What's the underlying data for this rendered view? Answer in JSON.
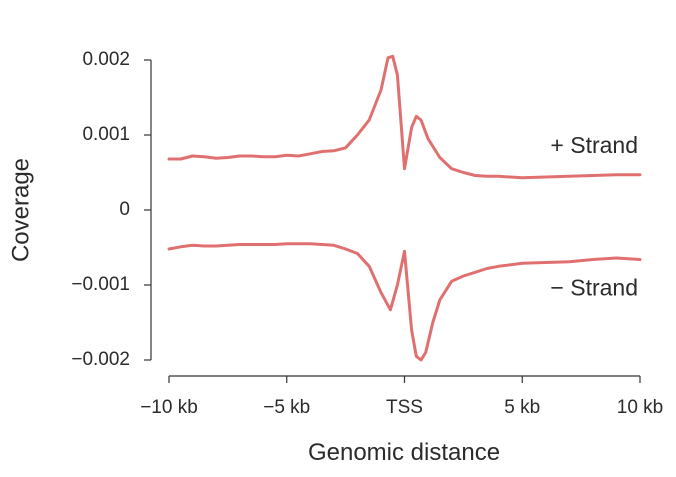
{
  "chart_data": {
    "type": "line",
    "xlabel": "Genomic distance",
    "ylabel": "Coverage",
    "xlim": [
      -10000,
      10000
    ],
    "ylim": [
      -0.002,
      0.002
    ],
    "grid": false,
    "legend": "none",
    "x_ticks": [
      {
        "value": -10000,
        "label": "−10 kb"
      },
      {
        "value": -5000,
        "label": "−5 kb"
      },
      {
        "value": 0,
        "label": "TSS"
      },
      {
        "value": 5000,
        "label": "5 kb"
      },
      {
        "value": 10000,
        "label": "10 kb"
      }
    ],
    "y_ticks": [
      {
        "value": 0.002,
        "label": "0.002"
      },
      {
        "value": 0.001,
        "label": "0.001"
      },
      {
        "value": 0,
        "label": "0"
      },
      {
        "value": -0.001,
        "label": "−0.001"
      },
      {
        "value": -0.002,
        "label": "−0.002"
      }
    ],
    "color": "#e07070",
    "series": [
      {
        "name": "+ Strand",
        "x": [
          -10000,
          -9500,
          -9000,
          -8500,
          -8000,
          -7500,
          -7000,
          -6500,
          -6000,
          -5500,
          -5000,
          -4500,
          -4000,
          -3500,
          -3000,
          -2500,
          -2000,
          -1500,
          -1000,
          -700,
          -500,
          -300,
          0,
          300,
          500,
          700,
          1000,
          1500,
          2000,
          2500,
          3000,
          3500,
          4000,
          5000,
          6000,
          7000,
          8000,
          9000,
          10000
        ],
        "values": [
          0.00068,
          0.00068,
          0.00072,
          0.00071,
          0.00069,
          0.0007,
          0.00072,
          0.00072,
          0.00071,
          0.00071,
          0.00073,
          0.00072,
          0.00075,
          0.00078,
          0.00079,
          0.00083,
          0.001,
          0.0012,
          0.0016,
          0.00203,
          0.00205,
          0.0018,
          0.00055,
          0.0011,
          0.00125,
          0.0012,
          0.00095,
          0.0007,
          0.00055,
          0.0005,
          0.00046,
          0.00045,
          0.00045,
          0.00043,
          0.00044,
          0.00045,
          0.00046,
          0.00047,
          0.00047
        ]
      },
      {
        "name": "− Strand",
        "x": [
          -10000,
          -9500,
          -9000,
          -8500,
          -8000,
          -7500,
          -7000,
          -6500,
          -6000,
          -5500,
          -5000,
          -4500,
          -4000,
          -3500,
          -3000,
          -2500,
          -2000,
          -1500,
          -1000,
          -600,
          -300,
          0,
          300,
          500,
          700,
          900,
          1200,
          1500,
          2000,
          2500,
          3000,
          3500,
          4000,
          5000,
          6000,
          7000,
          8000,
          9000,
          10000
        ],
        "values": [
          -0.00052,
          -0.00049,
          -0.00047,
          -0.00048,
          -0.00048,
          -0.00047,
          -0.00046,
          -0.00046,
          -0.00046,
          -0.00046,
          -0.00045,
          -0.00045,
          -0.00045,
          -0.00046,
          -0.00047,
          -0.00052,
          -0.00058,
          -0.00075,
          -0.0011,
          -0.00133,
          -0.001,
          -0.00055,
          -0.0016,
          -0.00195,
          -0.002,
          -0.0019,
          -0.0015,
          -0.0012,
          -0.00095,
          -0.00088,
          -0.00083,
          -0.00078,
          -0.00075,
          -0.00071,
          -0.0007,
          -0.00069,
          -0.00066,
          -0.00064,
          -0.00066
        ]
      }
    ]
  }
}
